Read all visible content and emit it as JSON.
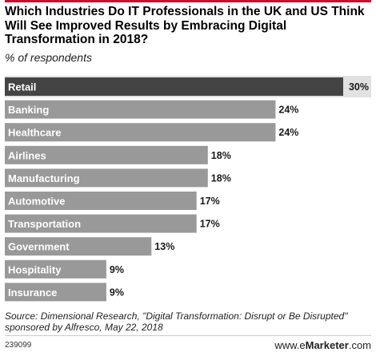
{
  "header": {
    "title": "Which Industries Do IT Professionals in the UK and US Think Will See Improved Results by Embracing Digital Transformation in 2018?",
    "subtitle": "% of respondents"
  },
  "colors": {
    "accent": "#c8102e",
    "bar": "#999999",
    "first_bar": "#444444",
    "first_band": "#e1e1e1"
  },
  "chart_data": {
    "type": "bar",
    "orientation": "horizontal",
    "title": "Which Industries Do IT Professionals in the UK and US Think Will See Improved Results by Embracing Digital Transformation in 2018?",
    "subtitle": "% of respondents",
    "categories": [
      "Retail",
      "Banking",
      "Healthcare",
      "Airlines",
      "Manufacturing",
      "Automotive",
      "Transportation",
      "Government",
      "Hospitality",
      "Insurance"
    ],
    "values": [
      30,
      24,
      24,
      18,
      18,
      17,
      17,
      13,
      9,
      9
    ],
    "value_labels": [
      "30%",
      "24%",
      "24%",
      "18%",
      "18%",
      "17%",
      "17%",
      "13%",
      "9%",
      "9%"
    ],
    "xlim": [
      0,
      30
    ],
    "grid": false,
    "legend": "none"
  },
  "footer": {
    "source": "Source: Dimensional Research, \"Digital Transformation: Disrupt or Be Disrupted\" sponsored by Alfresco, May 22, 2018",
    "chart_id": "239099",
    "brand_prefix": "www.",
    "brand_e": "e",
    "brand_name": "Marketer",
    "brand_suffix": ".com"
  }
}
